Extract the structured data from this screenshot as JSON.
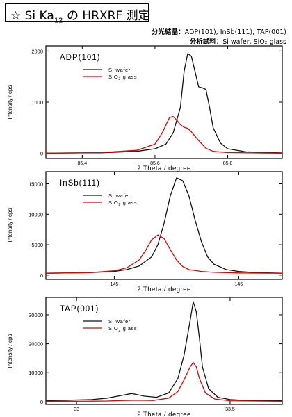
{
  "title": {
    "prefix": "☆ Si Ka",
    "subscript": "12",
    "suffix": " の HRXRF 測定"
  },
  "info": [
    {
      "label": "分光結晶：",
      "value": "ADP(101), InSb(111), TAP(001)"
    },
    {
      "label": "分析試料：",
      "value": "Si wafer, SiO₂ glass"
    }
  ],
  "colors": {
    "si_wafer": "#111111",
    "sio2_glass": "#e00000"
  },
  "chart_data": [
    {
      "type": "line",
      "title": "ADP(101)",
      "xlabel": "2 Theta / degree",
      "ylabel": "Intensity / cps",
      "xlim": [
        85.3,
        85.95
      ],
      "ylim": [
        -100,
        2100
      ],
      "xticks": [
        85.4,
        85.6,
        85.8
      ],
      "xtick_labels": [
        "85.4",
        "85.6",
        "85.8"
      ],
      "yticks": [
        0,
        1000,
        2000
      ],
      "ytick_labels": [
        "0",
        "1000",
        "2000"
      ],
      "series": [
        {
          "name": "Si wafer",
          "color": "#111111",
          "x": [
            85.3,
            85.45,
            85.55,
            85.6,
            85.63,
            85.65,
            85.67,
            85.68,
            85.69,
            85.7,
            85.71,
            85.72,
            85.73,
            85.74,
            85.75,
            85.76,
            85.78,
            85.8,
            85.85,
            85.95
          ],
          "y": [
            5,
            12,
            40,
            90,
            180,
            400,
            900,
            1600,
            1950,
            1900,
            1600,
            1300,
            1280,
            1250,
            900,
            500,
            200,
            90,
            30,
            10
          ]
        },
        {
          "name": "SiO₂ glass",
          "color": "#e00000",
          "x": [
            85.3,
            85.45,
            85.55,
            85.6,
            85.62,
            85.64,
            85.65,
            85.66,
            85.67,
            85.68,
            85.69,
            85.7,
            85.72,
            85.74,
            85.76,
            85.8,
            85.95
          ],
          "y": [
            5,
            15,
            60,
            180,
            400,
            700,
            720,
            650,
            560,
            510,
            490,
            420,
            250,
            100,
            40,
            15,
            5
          ]
        }
      ]
    },
    {
      "type": "line",
      "title": "InSb(111)",
      "xlabel": "2 Theta / degree",
      "ylabel": "Intensity / cps",
      "xlim": [
        144.45,
        146.35
      ],
      "ylim": [
        -700,
        17000
      ],
      "xticks": [
        145,
        146
      ],
      "xtick_labels": [
        "145",
        "146"
      ],
      "yticks": [
        0,
        5000,
        10000,
        15000
      ],
      "ytick_labels": [
        "0",
        "5000",
        "10000",
        "15000"
      ],
      "series": [
        {
          "name": "Si wafer",
          "color": "#111111",
          "x": [
            144.45,
            144.8,
            145.0,
            145.1,
            145.2,
            145.3,
            145.35,
            145.4,
            145.45,
            145.5,
            145.55,
            145.6,
            145.65,
            145.7,
            145.75,
            145.8,
            145.9,
            146.0,
            146.1,
            146.35
          ],
          "y": [
            300,
            400,
            600,
            900,
            1500,
            3000,
            5000,
            8500,
            13000,
            16000,
            15500,
            13000,
            9000,
            5500,
            3000,
            1800,
            900,
            600,
            450,
            300
          ]
        },
        {
          "name": "SiO₂ glass",
          "color": "#e00000",
          "x": [
            144.45,
            144.8,
            145.0,
            145.1,
            145.2,
            145.25,
            145.3,
            145.35,
            145.4,
            145.45,
            145.5,
            145.55,
            145.6,
            145.7,
            145.8,
            146.0,
            146.35
          ],
          "y": [
            300,
            400,
            700,
            1200,
            2500,
            4000,
            5800,
            6600,
            6000,
            4200,
            2500,
            1400,
            900,
            600,
            450,
            350,
            300
          ]
        }
      ]
    },
    {
      "type": "line",
      "title": "TAP(001)",
      "xlabel": "2 Theta / degree",
      "ylabel": "Intensity / cps",
      "xlim": [
        32.9,
        33.67
      ],
      "ylim": [
        -1000,
        36000
      ],
      "xticks": [
        33,
        33.5
      ],
      "xtick_labels": [
        "33",
        "33.5"
      ],
      "yticks": [
        0,
        10000,
        20000,
        30000
      ],
      "ytick_labels": [
        "0",
        "10000",
        "20000",
        "30000"
      ],
      "series": [
        {
          "name": "Si wafer",
          "color": "#111111",
          "x": [
            32.9,
            33.05,
            33.1,
            33.14,
            33.18,
            33.22,
            33.26,
            33.3,
            33.33,
            33.35,
            33.37,
            33.38,
            33.39,
            33.4,
            33.41,
            33.43,
            33.46,
            33.5,
            33.55,
            33.67
          ],
          "y": [
            300,
            700,
            1200,
            2000,
            2800,
            1900,
            1500,
            3000,
            8000,
            16000,
            28000,
            34500,
            31000,
            22000,
            12000,
            4500,
            1500,
            700,
            400,
            300
          ]
        },
        {
          "name": "SiO₂ glass",
          "color": "#e00000",
          "x": [
            32.9,
            33.05,
            33.1,
            33.15,
            33.2,
            33.25,
            33.3,
            33.33,
            33.35,
            33.37,
            33.38,
            33.39,
            33.4,
            33.42,
            33.45,
            33.5,
            33.67
          ],
          "y": [
            100,
            150,
            200,
            400,
            500,
            400,
            1200,
            3500,
            7500,
            12000,
            13500,
            12000,
            8000,
            3000,
            900,
            300,
            100
          ]
        }
      ]
    }
  ]
}
